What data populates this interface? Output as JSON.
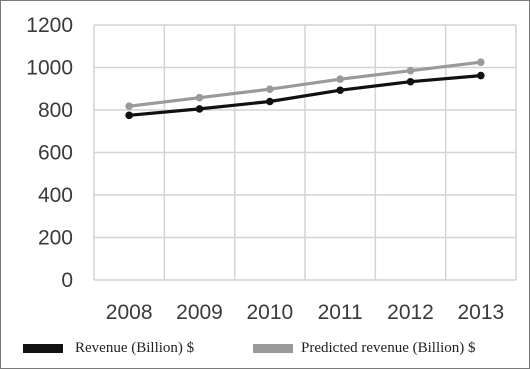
{
  "chart_data": {
    "type": "line",
    "categories": [
      "2008",
      "2009",
      "2010",
      "2011",
      "2012",
      "2013"
    ],
    "x": [
      2008,
      2009,
      2010,
      2011,
      2012,
      2013
    ],
    "series": [
      {
        "name": "Revenue (Billion) $",
        "values": [
          775,
          805,
          840,
          893,
          933,
          962
        ],
        "color": "#111111"
      },
      {
        "name": "Predicted revenue (Billion) $",
        "values": [
          818,
          858,
          898,
          945,
          985,
          1025
        ],
        "color": "#9a9a9a"
      }
    ],
    "yticks": [
      0,
      200,
      400,
      600,
      800,
      1000,
      1200
    ],
    "ylim": [
      0,
      1200
    ],
    "grid": true,
    "legend_position": "bottom",
    "title": "",
    "xlabel": "",
    "ylabel": ""
  }
}
